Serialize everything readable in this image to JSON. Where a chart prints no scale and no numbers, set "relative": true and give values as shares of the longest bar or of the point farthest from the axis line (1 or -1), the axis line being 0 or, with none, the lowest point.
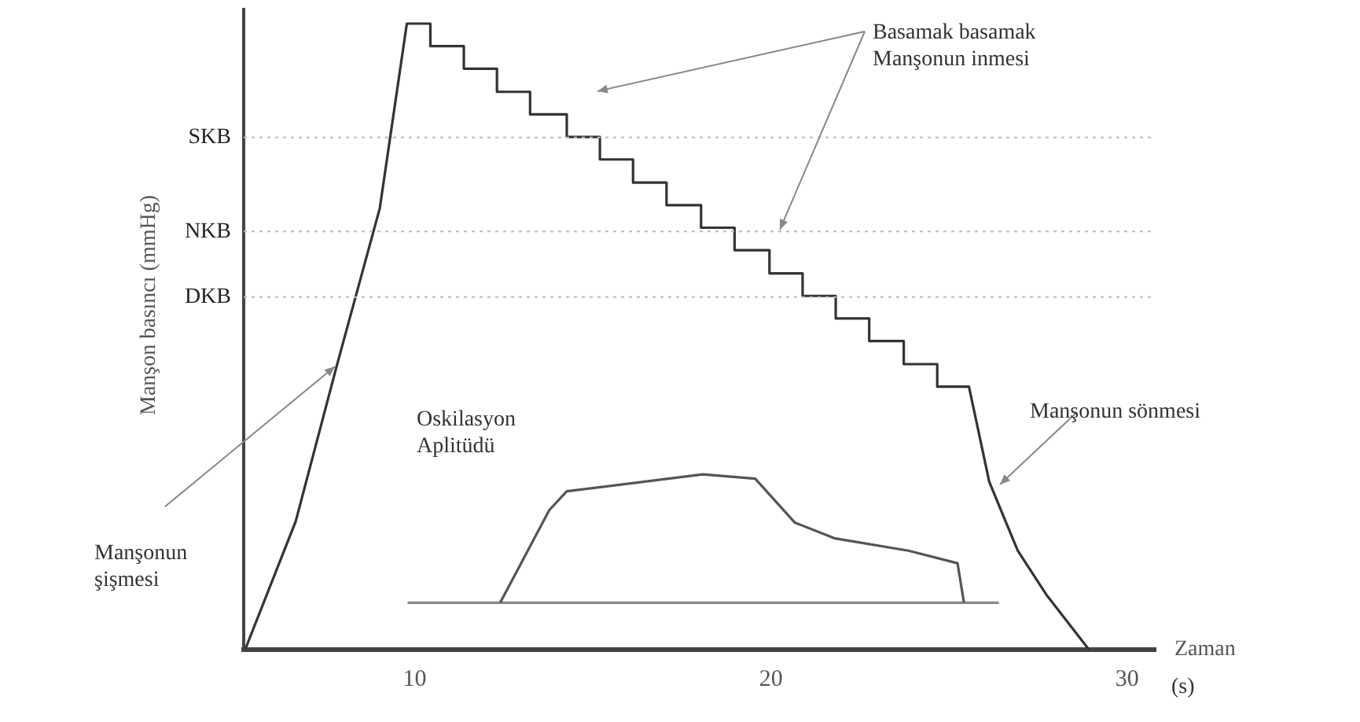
{
  "chart_data": {
    "type": "line",
    "relative": true,
    "xlabel": "Zaman",
    "ylabel": "Manşon basıncı (mmHg)",
    "xlim": [
      5.2,
      30.8
    ],
    "xticks": [
      10,
      20,
      30
    ],
    "tick_labels": "x",
    "grid": false,
    "legend": false,
    "marker": "none",
    "line_style": "solid",
    "series": [
      {
        "color": "#333333",
        "x": [
          5.24,
          6.66,
          7.82,
          9.02,
          9.78,
          10.44,
          10.44,
          11.38,
          11.38,
          12.31,
          12.31,
          13.24,
          13.24,
          14.27,
          14.27,
          15.2,
          15.2,
          16.13,
          16.13,
          17.07,
          17.07,
          18.04,
          18.04,
          18.98,
          18.98,
          19.96,
          19.96,
          20.89,
          20.89,
          21.82,
          21.82,
          22.76,
          22.76,
          23.73,
          23.73,
          24.67,
          24.67,
          25.56,
          26.13,
          26.93,
          27.73,
          28.93
        ],
        "values": [
          0,
          0.205,
          0.455,
          0.705,
          1,
          1,
          0.964,
          0.964,
          0.928,
          0.928,
          0.891,
          0.891,
          0.855,
          0.855,
          0.819,
          0.819,
          0.783,
          0.783,
          0.746,
          0.746,
          0.71,
          0.71,
          0.674,
          0.674,
          0.638,
          0.638,
          0.601,
          0.601,
          0.565,
          0.565,
          0.529,
          0.529,
          0.493,
          0.493,
          0.456,
          0.456,
          0.42,
          0.42,
          0.268,
          0.158,
          0.088,
          0
        ]
      },
      {
        "color": "#555555",
        "x": [
          12.4,
          13.78,
          14.27,
          18.09,
          19.56,
          20.67,
          21.78,
          23.87,
          25.24,
          25.42
        ],
        "values": [
          0.075,
          0.223,
          0.253,
          0.28,
          0.273,
          0.203,
          0.178,
          0.158,
          0.138,
          0.075
        ]
      },
      {
        "color": "#888888",
        "x": [
          9.8,
          26.4
        ],
        "values": [
          0.075,
          0.075
        ]
      }
    ],
    "ref_lines": [
      {
        "axis": "y",
        "value": 0.818,
        "label": "SKB",
        "color": "#bbbbbb",
        "line_style": "dotted"
      },
      {
        "axis": "y",
        "value": 0.668,
        "label": "NKB",
        "color": "#bbbbbb",
        "line_style": "dotted"
      },
      {
        "axis": "y",
        "value": 0.563,
        "label": "DKB",
        "color": "#bbbbbb",
        "line_style": "dotted"
      }
    ],
    "annotations": [
      "Manşonun\nşişmesi",
      "Basamak basamak\nManşonun inmesi",
      "Oskilasyon\nAplitüdü",
      "Manşonun sönmesi",
      "(s)"
    ]
  }
}
